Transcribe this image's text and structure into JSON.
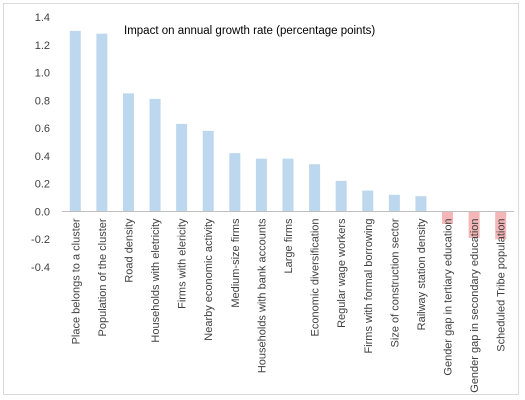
{
  "chart_data": {
    "type": "bar",
    "title": "Impact on annual growth rate (percentage points)",
    "xlabel": "",
    "ylabel": "",
    "ylim": [
      -0.4,
      1.4
    ],
    "yticks": [
      "-0.4",
      "-0.2",
      "0.0",
      "0.2",
      "0.4",
      "0.6",
      "0.8",
      "1.0",
      "1.2",
      "1.4"
    ],
    "grid": false,
    "legend": "none",
    "colors": {
      "positive": "#bdd7ee",
      "negative": "#f4b6b6",
      "axis": "#bfbfbf"
    },
    "categories": [
      "Place belongs to a cluster",
      "Population of the cluster",
      "Road density",
      "Households with eletricity",
      "Firms with elericity",
      "Nearby economic activity",
      "Medium-size firms",
      "Households with bank accounts",
      "Large firms",
      "Economic diversification",
      "Regular wage workers",
      "Firms with formal borrowing",
      "Size of construction sector",
      "Railway station density",
      "Gender gap in tertiary education",
      "Gender gap in secondary education",
      "Scheduled Tribe population"
    ],
    "values": [
      1.3,
      1.28,
      0.85,
      0.81,
      0.63,
      0.58,
      0.42,
      0.38,
      0.38,
      0.34,
      0.22,
      0.15,
      0.12,
      0.11,
      -0.09,
      -0.19,
      -0.2
    ]
  }
}
